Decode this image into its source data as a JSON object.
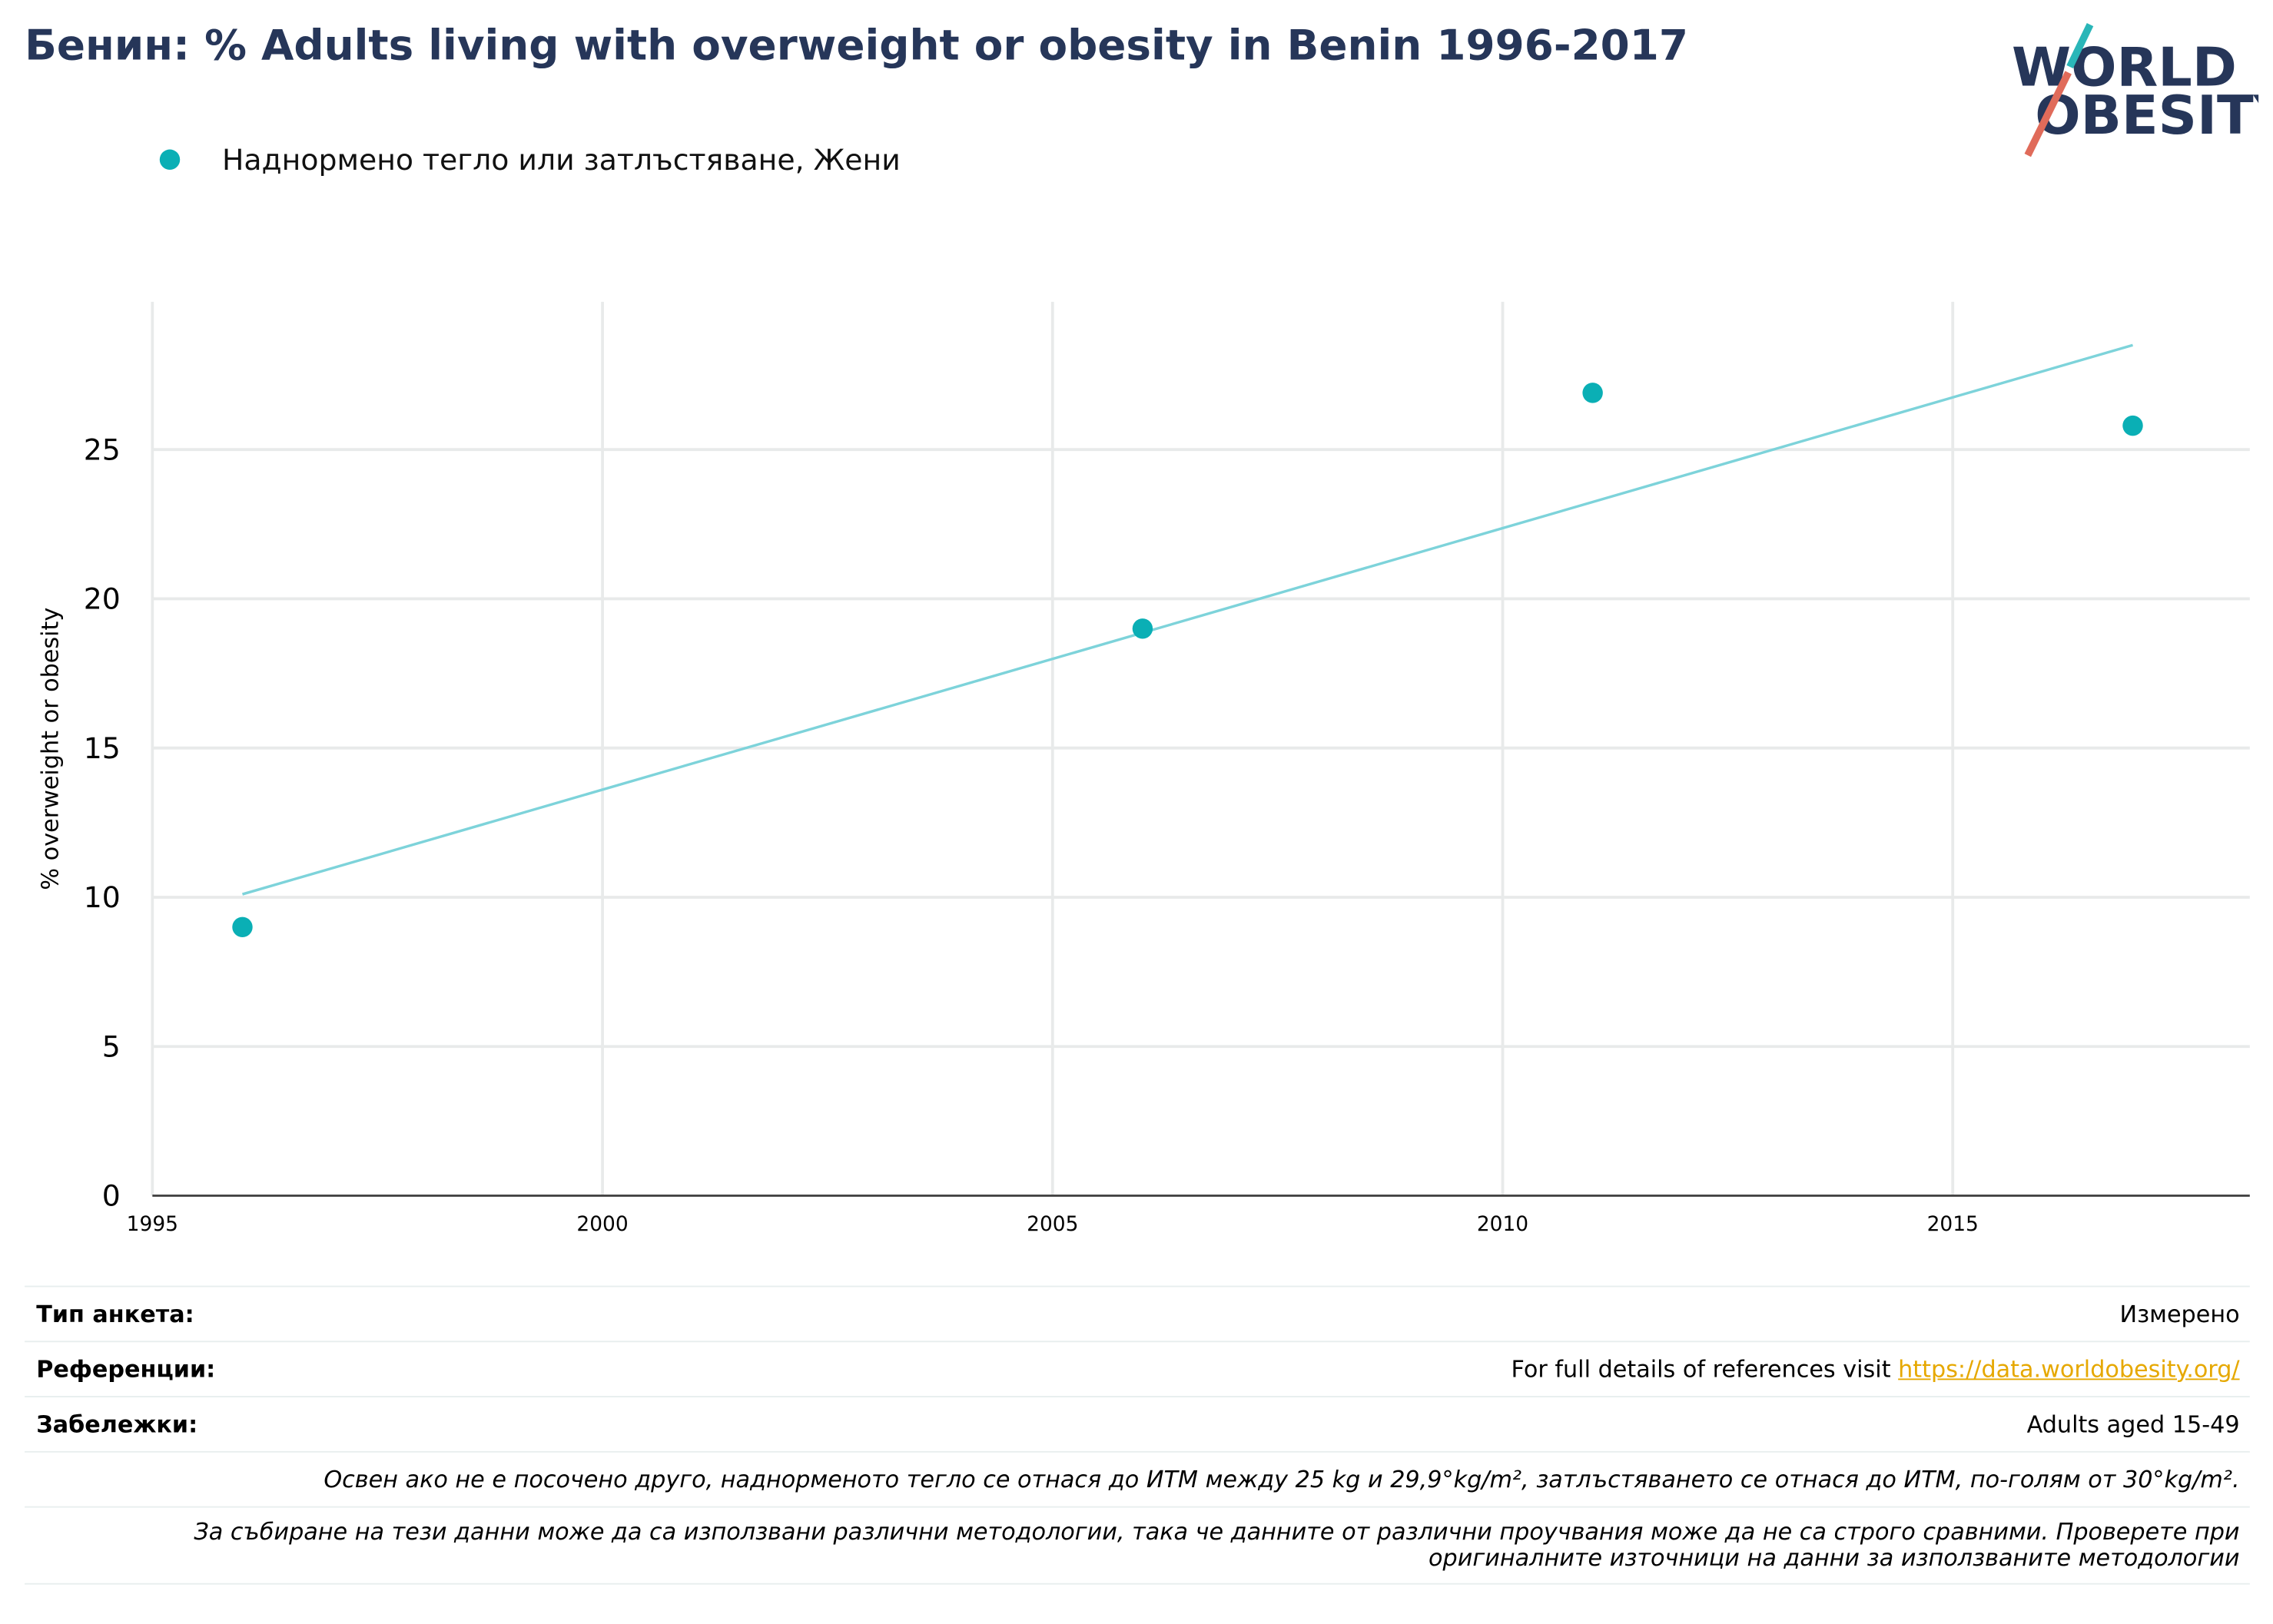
{
  "header": {
    "title": "Бенин: % Adults living with overweight or obesity in Benin 1996-2017",
    "logo_text_line1": "WORLD",
    "logo_text_line2": "OBESITY"
  },
  "legend": {
    "label": "Наднормено тегло или затлъстяване, Жени",
    "color": "#0aafb5"
  },
  "chart_data": {
    "type": "scatter",
    "ylabel": "% overweight or obesity",
    "xlim": [
      1995,
      2018.3
    ],
    "ylim": [
      0,
      30
    ],
    "x_ticks": [
      1995,
      2000,
      2005,
      2010,
      2015
    ],
    "y_ticks": [
      0,
      5,
      10,
      15,
      20,
      25
    ],
    "grid": true,
    "legend_position": "top-left",
    "series": [
      {
        "name": "Наднормено тегло или затлъстяване, Жени",
        "color": "#0aafb5",
        "points": [
          {
            "x": 1996,
            "y": 9.0
          },
          {
            "x": 2006,
            "y": 19.0
          },
          {
            "x": 2011,
            "y": 26.9
          },
          {
            "x": 2017,
            "y": 25.8
          }
        ]
      }
    ],
    "trendline": {
      "color": "#7dd3da",
      "x": [
        1996,
        2017
      ],
      "y": [
        10.1,
        28.5
      ]
    }
  },
  "info": {
    "survey_type_label": "Тип анкета:",
    "survey_type_value": "Измерено",
    "references_label": "Референции:",
    "references_text": "For full details of references visit ",
    "references_link": "https://data.worldobesity.org/",
    "notes_label": "Забележки:",
    "notes_value": "Adults aged 15-49",
    "definition_note": "Освен ако не е посочено друго, наднорменото тегло се отнася до ИТМ между 25 kg и 29,9°kg/m², затлъстяването се отнася до ИТМ, по-голям от 30°kg/m².",
    "methodology_note_line1": "За събиране на тези данни може да са използвани различни методологии, така че данните от различни проучвания може да не са строго сравними. Проверете при",
    "methodology_note_line2": "оригиналните източници на данни за използваните методологии"
  }
}
